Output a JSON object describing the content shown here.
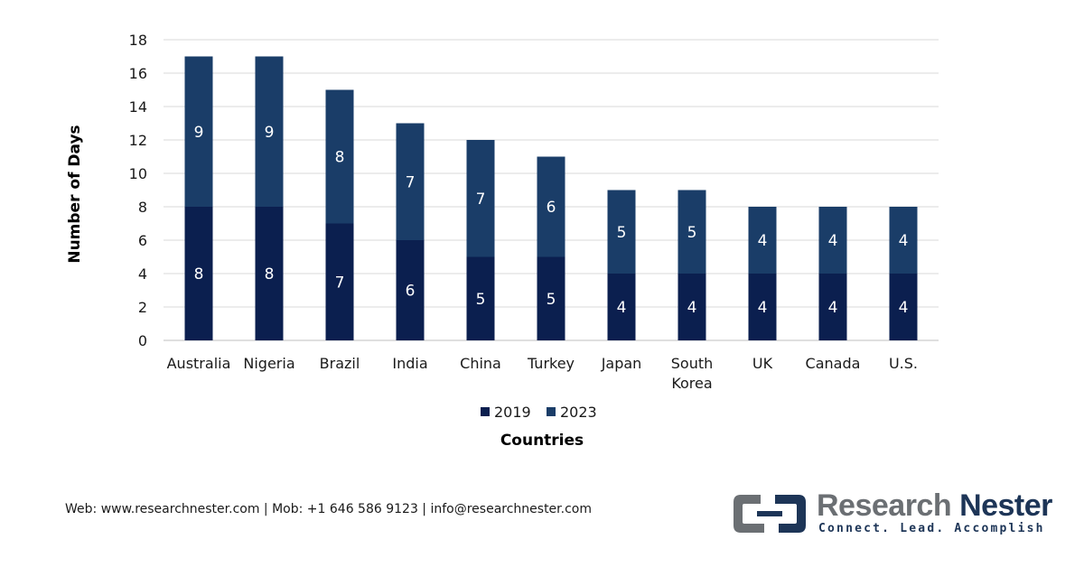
{
  "chart_data": {
    "type": "bar",
    "stacked": true,
    "title": "",
    "xlabel": "Countries",
    "ylabel": "Number of Days",
    "ylim": [
      0,
      18
    ],
    "yticks": [
      0,
      2,
      4,
      6,
      8,
      10,
      12,
      14,
      16,
      18
    ],
    "categories": [
      "Australia",
      "Nigeria",
      "Brazil",
      "India",
      "China",
      "Turkey",
      "Japan",
      "South Korea",
      "UK",
      "Canada",
      "U.S."
    ],
    "series": [
      {
        "name": "2019",
        "color": "#0b1f4f",
        "values": [
          8,
          8,
          7,
          6,
          5,
          5,
          4,
          4,
          4,
          4,
          4
        ]
      },
      {
        "name": "2023",
        "color": "#1a3d68",
        "values": [
          9,
          9,
          8,
          7,
          7,
          6,
          5,
          5,
          4,
          4,
          4
        ]
      }
    ],
    "grid": true,
    "legend_position": "bottom"
  },
  "footer": {
    "contact": "Web: www.researchnester.com | Mob: +1 646 586 9123 | info@researchnester.com"
  },
  "brand": {
    "name_part1": "Research",
    "name_part2": "Nester",
    "tagline": "Connect. Lead. Accomplish"
  }
}
